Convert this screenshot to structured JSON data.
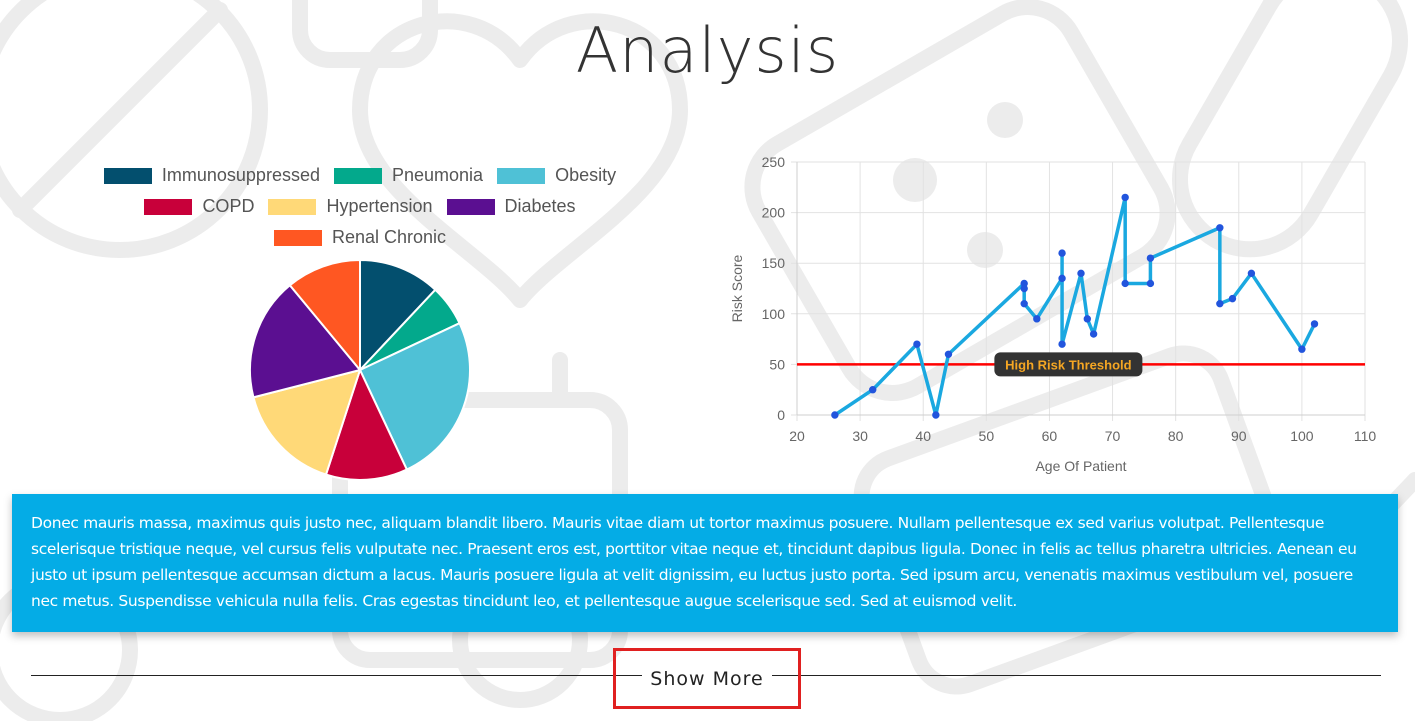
{
  "page": {
    "title": "Analysis"
  },
  "colors": {
    "accent": "#04ACE6",
    "line": "#1AA8E0",
    "threshold": "#FF0000",
    "highlight": "#E02020"
  },
  "chart_data": [
    {
      "type": "pie",
      "legend_position": "top",
      "categories": [
        "Immunosuppressed",
        "Pneumonia",
        "Obesity",
        "COPD",
        "Hypertension",
        "Diabetes",
        "Renal Chronic"
      ],
      "values": [
        12,
        6,
        25,
        12,
        16,
        18,
        11
      ],
      "colors": [
        "#034F6E",
        "#03A98C",
        "#4FC1D6",
        "#C8003A",
        "#FFD978",
        "#5B0F91",
        "#FF5722"
      ]
    },
    {
      "type": "line",
      "xlabel": "Age Of Patient",
      "ylabel": "Risk Score",
      "xlim": [
        20,
        110
      ],
      "ylim": [
        0,
        250
      ],
      "xticks": [
        20,
        30,
        40,
        50,
        60,
        70,
        80,
        90,
        100,
        110
      ],
      "yticks": [
        0,
        50,
        100,
        150,
        200,
        250
      ],
      "grid": true,
      "series": [
        {
          "x": [
            26,
            32,
            39,
            42,
            44,
            56,
            56,
            56,
            58,
            62,
            62,
            62,
            65,
            66,
            67,
            72,
            72,
            76,
            76,
            87,
            87,
            89,
            92,
            100,
            102
          ],
          "y": [
            0,
            25,
            70,
            0,
            60,
            130,
            125,
            110,
            95,
            135,
            160,
            70,
            140,
            95,
            80,
            215,
            130,
            130,
            155,
            185,
            110,
            115,
            140,
            65,
            90
          ]
        }
      ],
      "threshold": {
        "value": 50,
        "label": "High Risk Threshold"
      }
    }
  ],
  "info": {
    "text": "Donec mauris massa, maximus quis justo nec, aliquam blandit libero. Mauris vitae diam ut tortor maximus posuere. Nullam pellentesque ex sed varius volutpat. Pellentesque scelerisque tristique neque, vel cursus felis vulputate nec. Praesent eros est, porttitor vitae neque et, tincidunt dapibus ligula. Donec in felis ac tellus pharetra ultricies. Aenean eu justo ut ipsum pellentesque accumsan dictum a lacus. Mauris posuere ligula at velit dignissim, eu luctus justo porta. Sed ipsum arcu, venenatis maximus vestibulum vel, posuere nec metus. Suspendisse vehicula nulla felis. Cras egestas tincidunt leo, et pellentesque augue scelerisque sed. Sed at euismod velit."
  },
  "actions": {
    "show_more": "Show More"
  }
}
